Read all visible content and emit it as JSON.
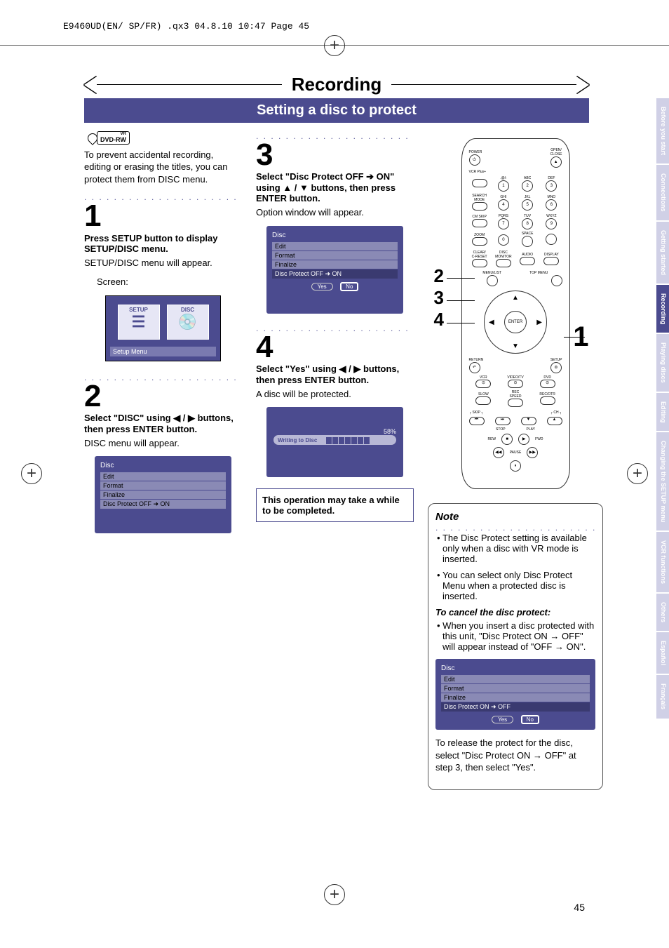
{
  "header_line": "E9460UD(EN/ SP/FR) .qx3  04.8.10  10:47  Page 45",
  "title": "Recording",
  "subtitle": "Setting a disc to protect",
  "dvd_badge": "DVD-RW",
  "dvd_badge_top": "VR",
  "intro_para": "To prevent accidental recording, editing or erasing the titles, you can protect them from DISC menu.",
  "dots": ". . . . . . . . . . . . . . . . . . . . . .",
  "step1": {
    "num": "1",
    "head": "Press SETUP button to display SETUP/DISC menu.",
    "body": "SETUP/DISC menu will appear.",
    "screen_label": "Screen:",
    "setup_box_1": "SETUP",
    "setup_box_2": "DISC",
    "caption": "Setup Menu"
  },
  "step2": {
    "num": "2",
    "head": "Select \"DISC\" using ◀ / ▶ buttons, then press ENTER button.",
    "body": "DISC menu will appear.",
    "panel_title": "Disc",
    "rows": [
      "Edit",
      "Format",
      "Finalize",
      "Disc Protect OFF ➜ ON"
    ]
  },
  "step3": {
    "num": "3",
    "head": "Select \"Disc Protect OFF ➔ ON\" using ▲ / ▼ buttons, then press ENTER button.",
    "body": "Option window will appear.",
    "panel_title": "Disc",
    "rows": [
      "Edit",
      "Format",
      "Finalize",
      "Disc Protect OFF ➜ ON"
    ],
    "btn_yes": "Yes",
    "btn_no": "No"
  },
  "step4": {
    "num": "4",
    "head": "Select \"Yes\" using ◀ / ▶ buttons, then press ENTER button.",
    "body": "A disc will be protected.",
    "pct": "58%",
    "pb_label": "Writing to Disc",
    "fill_segments": 7
  },
  "op_note": "This operation may take a while to be completed.",
  "remote": {
    "power": "POWER",
    "open_close": "OPEN/\nCLOSE",
    "vcr_plus": "VCR Plus+",
    "labels_row1": [
      "",
      ".@/:",
      "ABC",
      "DEF"
    ],
    "labels_row2": [
      "SEARCH\nMODE",
      "GHI",
      "JKL",
      "MNO"
    ],
    "labels_row3": [
      "CM SKIP",
      "PQRS",
      "TUV",
      "WXYZ"
    ],
    "labels_row4": [
      "ZOOM",
      "",
      "SPACE",
      ""
    ],
    "labels_row5": [
      "CLEAR/\nC-RESET",
      "DISC\nMONITOR",
      "AUDIO",
      "DISPLAY"
    ],
    "menulist": "MENU/LIST",
    "topmenu": "TOP MENU",
    "enter": "ENTER",
    "return": "RETURN",
    "setup": "SETUP",
    "row_media": [
      "VCR",
      "VIDEO/TV",
      "DVD"
    ],
    "row_speed": [
      "SLOW",
      "REC\nSPEED",
      "REC/OTR"
    ],
    "row_skip": [
      "SKIP",
      "",
      "CH"
    ],
    "row_stopplay": [
      "STOP",
      "PLAY"
    ],
    "row_rew": [
      "REW",
      "PAUSE",
      "FWD"
    ],
    "nums": [
      "1",
      "2",
      "3",
      "4",
      "5",
      "6",
      "7",
      "8",
      "9",
      "0"
    ]
  },
  "callout_numbers": [
    "2",
    "3",
    "4"
  ],
  "callout_one": "1",
  "note": {
    "title": "Note",
    "bullets": [
      "The Disc Protect setting is available only when a disc with VR mode is inserted.",
      "You can select only Disc Protect Menu when a protected disc is inserted."
    ],
    "cancel_head": "To cancel the disc protect:",
    "cancel_bullet": "When you insert a disc protected with this unit, \"Disc Protect ON → OFF\" will appear instead of \"OFF → ON\".",
    "panel_title": "Disc",
    "rows": [
      "Edit",
      "Format",
      "Finalize",
      "Disc Protect ON ➜ OFF"
    ],
    "btn_yes": "Yes",
    "btn_no": "No",
    "footer": "To release the protect for the disc, select \"Disc Protect ON → OFF\" at step 3, then select \"Yes\"."
  },
  "side_tabs": [
    {
      "label": "Before you start",
      "active": false
    },
    {
      "label": "Connections",
      "active": false
    },
    {
      "label": "Getting started",
      "active": false
    },
    {
      "label": "Recording",
      "active": true
    },
    {
      "label": "Playing discs",
      "active": false
    },
    {
      "label": "Editing",
      "active": false
    },
    {
      "label": "Changing the SETUP menu",
      "active": false
    },
    {
      "label": "VCR functions",
      "active": false
    },
    {
      "label": "Others",
      "active": false
    },
    {
      "label": "Español",
      "active": false
    },
    {
      "label": "Français",
      "active": false
    }
  ],
  "page_num": "45",
  "colors": {
    "bar": "#4b4b8f",
    "panel": "#4b4b8f",
    "panel_row": "#8a8ab5",
    "tab_inactive": "#d0d0e6"
  }
}
